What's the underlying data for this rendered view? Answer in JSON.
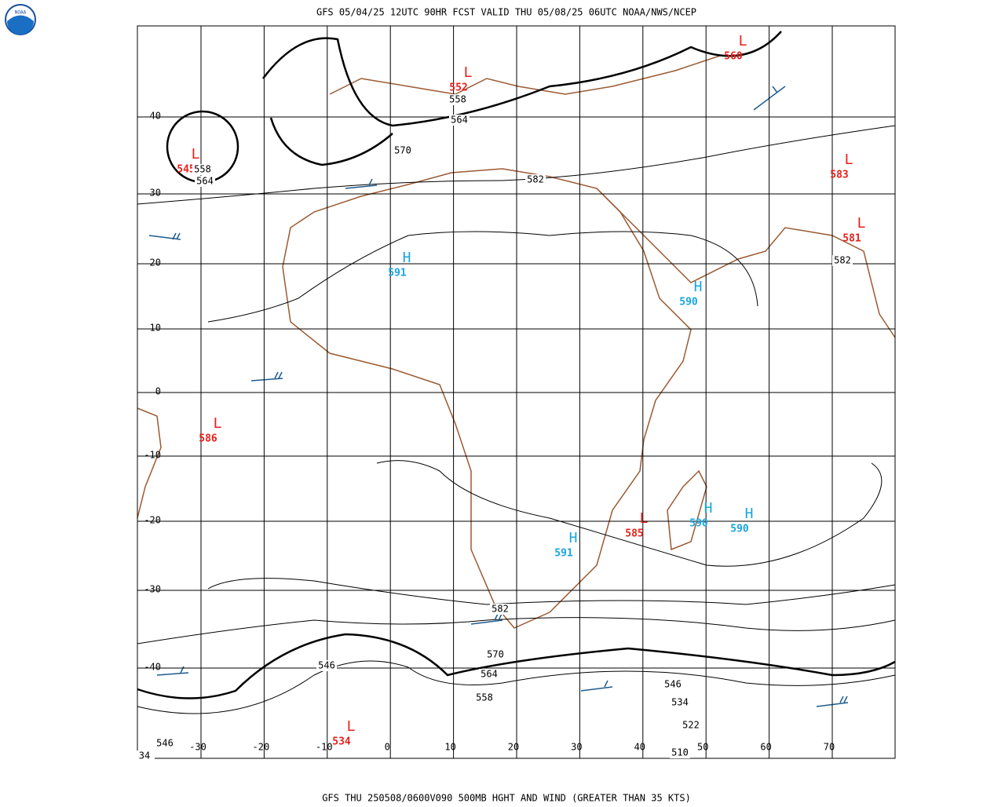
{
  "header": {
    "title": "GFS 05/04/25 12UTC 90HR FCST VALID THU 05/08/25 06UTC NOAA/NWS/NCEP",
    "logo": "NOAA"
  },
  "footer": {
    "text": "GFS THU 250508/0600V090 500MB HGHT AND WIND (GREATER THAN 35 KTS)"
  },
  "latitudes": [
    "40",
    "30",
    "20",
    "10",
    "0",
    "-10",
    "-20",
    "-30",
    "-40"
  ],
  "longitudes": [
    "-30",
    "-20",
    "-10",
    "0",
    "10",
    "20",
    "30",
    "40",
    "50",
    "60",
    "70"
  ],
  "centers": [
    {
      "kind": "L",
      "value": "552"
    },
    {
      "kind": "L",
      "value": "560"
    },
    {
      "kind": "L",
      "value": "545"
    },
    {
      "kind": "L",
      "value": "583"
    },
    {
      "kind": "L",
      "value": "581"
    },
    {
      "kind": "H",
      "value": "591"
    },
    {
      "kind": "H",
      "value": "590"
    },
    {
      "kind": "L",
      "value": "586"
    },
    {
      "kind": "H",
      "value": "590"
    },
    {
      "kind": "H",
      "value": "590"
    },
    {
      "kind": "L",
      "value": "585"
    },
    {
      "kind": "H",
      "value": "591"
    },
    {
      "kind": "L",
      "value": "534"
    }
  ],
  "contour_labels": [
    "558",
    "564",
    "570",
    "582",
    "558",
    "564",
    "582",
    "582",
    "570",
    "564",
    "558",
    "546",
    "546",
    "534",
    "522",
    "510",
    "546",
    "34"
  ]
}
